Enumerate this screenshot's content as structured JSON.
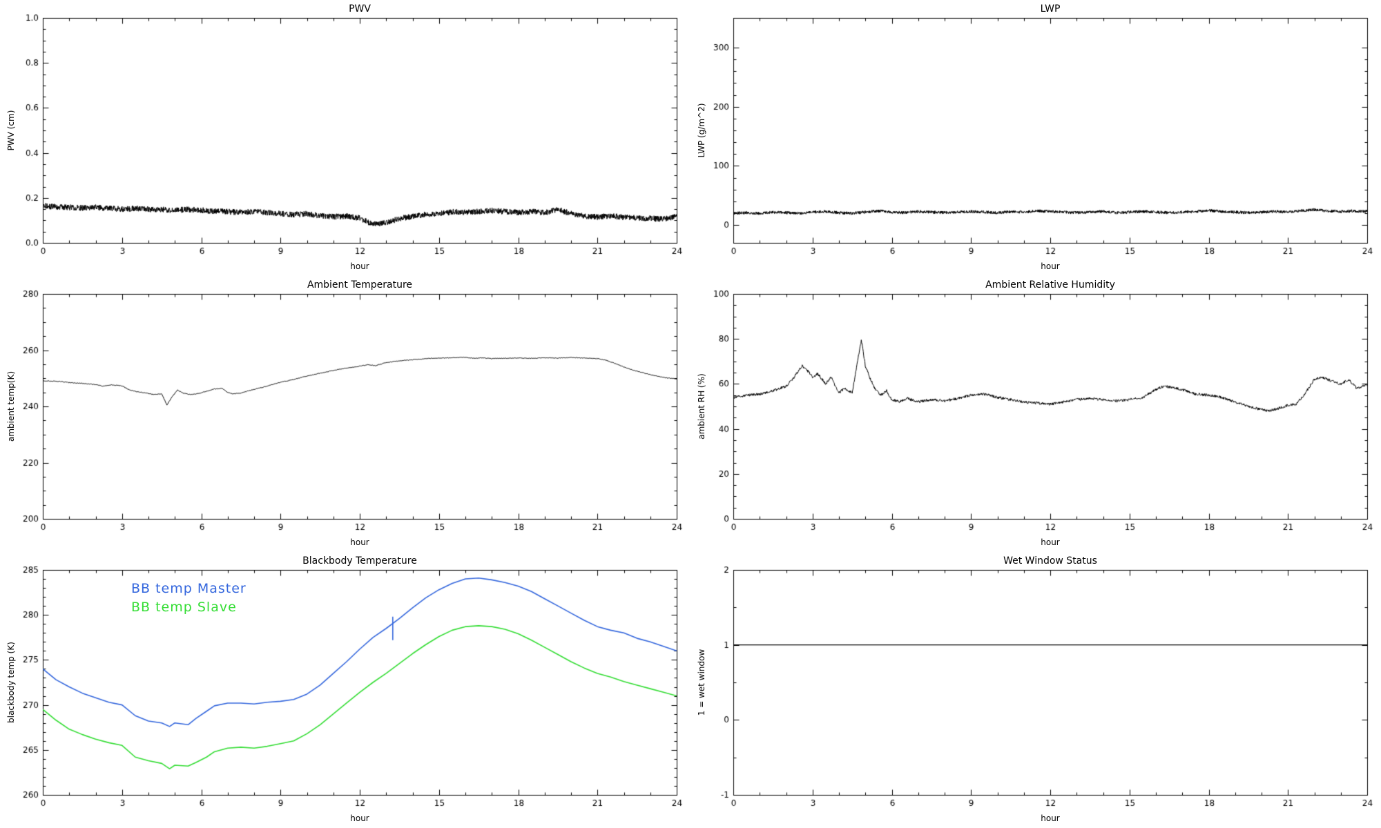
{
  "page": {
    "background": "#ffffff",
    "text_color": "#000000"
  },
  "chart_data": [
    {
      "type": "line",
      "title": "PWV",
      "xlabel": "hour",
      "ylabel": "PWV (cm)",
      "xlim": [
        0,
        24
      ],
      "ylim": [
        0.0,
        1.0
      ],
      "xticks": [
        0,
        3,
        6,
        9,
        12,
        15,
        18,
        21,
        24
      ],
      "xtick_labels": [
        "0",
        "3",
        "6",
        "9",
        "12",
        "15",
        "18",
        "21",
        "24"
      ],
      "yticks": [
        0.0,
        0.2,
        0.4,
        0.6,
        0.8,
        1.0
      ],
      "ytick_labels": [
        "0.0",
        "0.2",
        "0.4",
        "0.6",
        "0.8",
        "1.0"
      ],
      "xminor": 3,
      "yminor": 4,
      "grid": false,
      "series": [
        {
          "name": "PWV",
          "color": "#000000",
          "noise": 0.013,
          "y": [
            0.165,
            0.16,
            0.158,
            0.155,
            0.158,
            0.154,
            0.15,
            0.153,
            0.15,
            0.148,
            0.145,
            0.149,
            0.145,
            0.14,
            0.139,
            0.136,
            0.139,
            0.135,
            0.13,
            0.126,
            0.129,
            0.121,
            0.116,
            0.119,
            0.11,
            0.082,
            0.09,
            0.108,
            0.118,
            0.128,
            0.13,
            0.138,
            0.135,
            0.139,
            0.144,
            0.139,
            0.135,
            0.139,
            0.134,
            0.148,
            0.13,
            0.12,
            0.115,
            0.119,
            0.114,
            0.11,
            0.109,
            0.105,
            0.118
          ]
        }
      ]
    },
    {
      "type": "line",
      "title": "LWP",
      "xlabel": "hour",
      "ylabel": "LWP (g/m^2)",
      "xlim": [
        0,
        24
      ],
      "ylim": [
        -30,
        350
      ],
      "xticks": [
        0,
        3,
        6,
        9,
        12,
        15,
        18,
        21,
        24
      ],
      "xtick_labels": [
        "0",
        "3",
        "6",
        "9",
        "12",
        "15",
        "18",
        "21",
        "24"
      ],
      "yticks": [
        0,
        100,
        200,
        300
      ],
      "ytick_labels": [
        "0",
        "100",
        "200",
        "300"
      ],
      "xminor": 3,
      "yminor": 5,
      "grid": false,
      "series": [
        {
          "name": "LWP",
          "color": "#000000",
          "noise": 2.5,
          "y": [
            20,
            21,
            20,
            22,
            21,
            20,
            22,
            23,
            21,
            20,
            22,
            24,
            22,
            21,
            23,
            22,
            21,
            22,
            23,
            22,
            21,
            23,
            22,
            24,
            23,
            22,
            21,
            22,
            23,
            21,
            22,
            23,
            22,
            21,
            22,
            23,
            25,
            23,
            22,
            21,
            22,
            23,
            22,
            24,
            26,
            24,
            23,
            24,
            23
          ]
        }
      ]
    },
    {
      "type": "line",
      "title": "Ambient Temperature",
      "xlabel": "hour",
      "ylabel": "ambient temp(K)",
      "xlim": [
        0,
        24
      ],
      "ylim": [
        200,
        280
      ],
      "xticks": [
        0,
        3,
        6,
        9,
        12,
        15,
        18,
        21,
        24
      ],
      "xtick_labels": [
        "0",
        "3",
        "6",
        "9",
        "12",
        "15",
        "18",
        "21",
        "24"
      ],
      "yticks": [
        200,
        220,
        240,
        260,
        280
      ],
      "ytick_labels": [
        "200",
        "220",
        "240",
        "260",
        "280"
      ],
      "xminor": 3,
      "yminor": 4,
      "grid": false,
      "series": [
        {
          "name": "ambient temperature",
          "color": "#000000",
          "noise": 0.12,
          "step": 0.02,
          "x": [
            0,
            0.5,
            1,
            1.5,
            2,
            2.3,
            2.6,
            3,
            3.3,
            3.6,
            3.9,
            4.2,
            4.5,
            4.7,
            4.9,
            5.1,
            5.3,
            5.6,
            5.9,
            6.2,
            6.5,
            6.8,
            7.0,
            7.2,
            7.5,
            7.8,
            8.1,
            8.5,
            9,
            9.5,
            10,
            10.5,
            11,
            11.5,
            12,
            12.3,
            12.6,
            13,
            13.5,
            14,
            14.5,
            15,
            15.5,
            16,
            16.3,
            16.6,
            17,
            17.5,
            18,
            18.5,
            19,
            19.5,
            20,
            20.5,
            21,
            21.3,
            21.6,
            22,
            22.5,
            23,
            23.5,
            24
          ],
          "y": [
            249,
            249,
            248.5,
            248.2,
            247.8,
            247.2,
            247.6,
            247.3,
            245.8,
            245.2,
            244.8,
            244.2,
            244.5,
            240.5,
            243.5,
            245.8,
            244.8,
            244.2,
            244.6,
            245.4,
            246.2,
            246.4,
            245.0,
            244.4,
            244.8,
            245.6,
            246.3,
            247.2,
            248.6,
            249.6,
            250.8,
            251.8,
            252.8,
            253.6,
            254.3,
            254.8,
            254.5,
            255.6,
            256.2,
            256.6,
            257.0,
            257.2,
            257.3,
            257.5,
            257.1,
            257.3,
            257.0,
            257.1,
            257.2,
            257.1,
            257.3,
            257.2,
            257.4,
            257.2,
            257.0,
            256.5,
            255.5,
            254.0,
            252.5,
            251.3,
            250.3,
            249.8
          ]
        }
      ]
    },
    {
      "type": "line",
      "title": "Ambient Relative Humidity",
      "xlabel": "hour",
      "ylabel": "ambient RH (%)",
      "xlim": [
        0,
        24
      ],
      "ylim": [
        0,
        100
      ],
      "xticks": [
        0,
        3,
        6,
        9,
        12,
        15,
        18,
        21,
        24
      ],
      "xtick_labels": [
        "0",
        "3",
        "6",
        "9",
        "12",
        "15",
        "18",
        "21",
        "24"
      ],
      "yticks": [
        0,
        20,
        40,
        60,
        80,
        100
      ],
      "ytick_labels": [
        "0",
        "20",
        "40",
        "60",
        "80",
        "100"
      ],
      "xminor": 3,
      "yminor": 4,
      "grid": false,
      "series": [
        {
          "name": "ambient RH",
          "color": "#000000",
          "noise": 0.6,
          "step": 0.015,
          "x": [
            0,
            0.5,
            1,
            1.5,
            2,
            2.3,
            2.6,
            2.8,
            3,
            3.2,
            3.5,
            3.7,
            4,
            4.2,
            4.5,
            4.7,
            4.85,
            5,
            5.2,
            5.4,
            5.6,
            5.8,
            6,
            6.3,
            6.6,
            7,
            7.5,
            8,
            8.5,
            9,
            9.5,
            10,
            10.5,
            11,
            11.5,
            12,
            12.5,
            13,
            13.5,
            14,
            14.5,
            15,
            15.5,
            16,
            16.3,
            16.6,
            17,
            17.5,
            18,
            18.5,
            19,
            19.5,
            20,
            20.3,
            20.6,
            21,
            21.3,
            21.6,
            22,
            22.3,
            22.6,
            23,
            23.3,
            23.6,
            24
          ],
          "y": [
            54,
            55,
            55.5,
            57,
            59,
            63,
            68,
            66,
            63,
            64.5,
            60,
            63,
            56,
            58,
            56,
            70,
            79.5,
            68,
            62,
            57,
            55,
            57,
            53,
            52,
            53.5,
            52,
            53,
            52.5,
            53.5,
            55,
            55.5,
            54,
            53,
            52,
            51.5,
            51,
            52,
            53,
            53.5,
            53,
            52.5,
            53,
            54,
            57.5,
            59,
            58.5,
            57.5,
            55.5,
            55,
            54,
            52,
            50,
            48.5,
            48,
            49,
            50.5,
            51,
            55,
            62,
            63,
            61.5,
            60,
            62,
            58,
            59.5
          ]
        }
      ]
    },
    {
      "type": "line",
      "title": "Blackbody Temperature",
      "xlabel": "hour",
      "ylabel": "blackbody temp (K)",
      "xlim": [
        0,
        24
      ],
      "ylim": [
        260,
        285
      ],
      "xticks": [
        0,
        3,
        6,
        9,
        12,
        15,
        18,
        21,
        24
      ],
      "xtick_labels": [
        "0",
        "3",
        "6",
        "9",
        "12",
        "15",
        "18",
        "21",
        "24"
      ],
      "yticks": [
        260,
        265,
        270,
        275,
        280,
        285
      ],
      "ytick_labels": [
        "260",
        "265",
        "270",
        "275",
        "280",
        "285"
      ],
      "xminor": 3,
      "yminor": 5,
      "grid": false,
      "legend_position": "top-left",
      "series": [
        {
          "name": "BB temp Master",
          "color": "#3366dd",
          "width": 1.6,
          "x": [
            0,
            0.5,
            1,
            1.5,
            2,
            2.5,
            3,
            3.5,
            4,
            4.5,
            4.8,
            5,
            5.5,
            5.8,
            6.2,
            6.5,
            7,
            7.5,
            8,
            8.5,
            9,
            9.5,
            10,
            10.5,
            11,
            11.5,
            12,
            12.5,
            13,
            13.5,
            14,
            14.5,
            15,
            15.5,
            16,
            16.5,
            17,
            17.5,
            18,
            18.5,
            19,
            19.5,
            20,
            20.5,
            21,
            21.5,
            22,
            22.5,
            23,
            23.5,
            24
          ],
          "y": [
            274.0,
            272.8,
            272.0,
            271.3,
            270.8,
            270.3,
            270.0,
            268.8,
            268.2,
            268.0,
            267.6,
            268.0,
            267.8,
            268.5,
            269.3,
            269.9,
            270.2,
            270.2,
            270.1,
            270.3,
            270.4,
            270.6,
            271.2,
            272.2,
            273.5,
            274.8,
            276.2,
            277.5,
            278.5,
            279.6,
            280.8,
            281.9,
            282.8,
            283.5,
            284.0,
            284.1,
            283.9,
            283.6,
            283.2,
            282.6,
            281.8,
            281.0,
            280.2,
            279.4,
            278.7,
            278.3,
            278.0,
            277.4,
            277.0,
            276.5,
            276.0
          ]
        },
        {
          "name": "BB temp Slave",
          "color": "#33dd33",
          "width": 1.6,
          "x": [
            0,
            0.5,
            1,
            1.5,
            2,
            2.5,
            3,
            3.5,
            4,
            4.5,
            4.8,
            5,
            5.5,
            5.8,
            6.2,
            6.5,
            7,
            7.5,
            8,
            8.5,
            9,
            9.5,
            10,
            10.5,
            11,
            11.5,
            12,
            12.5,
            13,
            13.5,
            14,
            14.5,
            15,
            15.5,
            16,
            16.5,
            17,
            17.5,
            18,
            18.5,
            19,
            19.5,
            20,
            20.5,
            21,
            21.5,
            22,
            22.5,
            23,
            23.5,
            24
          ],
          "y": [
            269.5,
            268.3,
            267.3,
            266.7,
            266.2,
            265.8,
            265.5,
            264.2,
            263.8,
            263.5,
            262.9,
            263.3,
            263.2,
            263.6,
            264.2,
            264.8,
            265.2,
            265.3,
            265.2,
            265.4,
            265.7,
            266.0,
            266.8,
            267.8,
            269.0,
            270.2,
            271.4,
            272.5,
            273.5,
            274.6,
            275.7,
            276.7,
            277.6,
            278.3,
            278.7,
            278.8,
            278.7,
            278.4,
            277.9,
            277.2,
            276.4,
            275.6,
            274.8,
            274.1,
            273.5,
            273.1,
            272.6,
            272.2,
            271.8,
            271.4,
            271.0
          ]
        },
        {
          "name": "spike artifact",
          "color": "#3366dd",
          "width": 1.6,
          "x": [
            13.25,
            13.25
          ],
          "y": [
            279.8,
            277.2
          ]
        }
      ]
    },
    {
      "type": "line",
      "title": "Wet Window Status",
      "xlabel": "hour",
      "ylabel": "1 = wet window",
      "xlim": [
        0,
        24
      ],
      "ylim": [
        -1,
        2
      ],
      "xticks": [
        0,
        3,
        6,
        9,
        12,
        15,
        18,
        21,
        24
      ],
      "xtick_labels": [
        "0",
        "3",
        "6",
        "9",
        "12",
        "15",
        "18",
        "21",
        "24"
      ],
      "yticks": [
        -1,
        0,
        1,
        2
      ],
      "ytick_labels": [
        "-1",
        "0",
        "1",
        "2"
      ],
      "xminor": 3,
      "yminor": 2,
      "grid": false,
      "series": [
        {
          "name": "wet window flag",
          "color": "#000000",
          "width": 1.3,
          "x": [
            0,
            24
          ],
          "y": [
            1,
            1
          ]
        }
      ]
    }
  ]
}
